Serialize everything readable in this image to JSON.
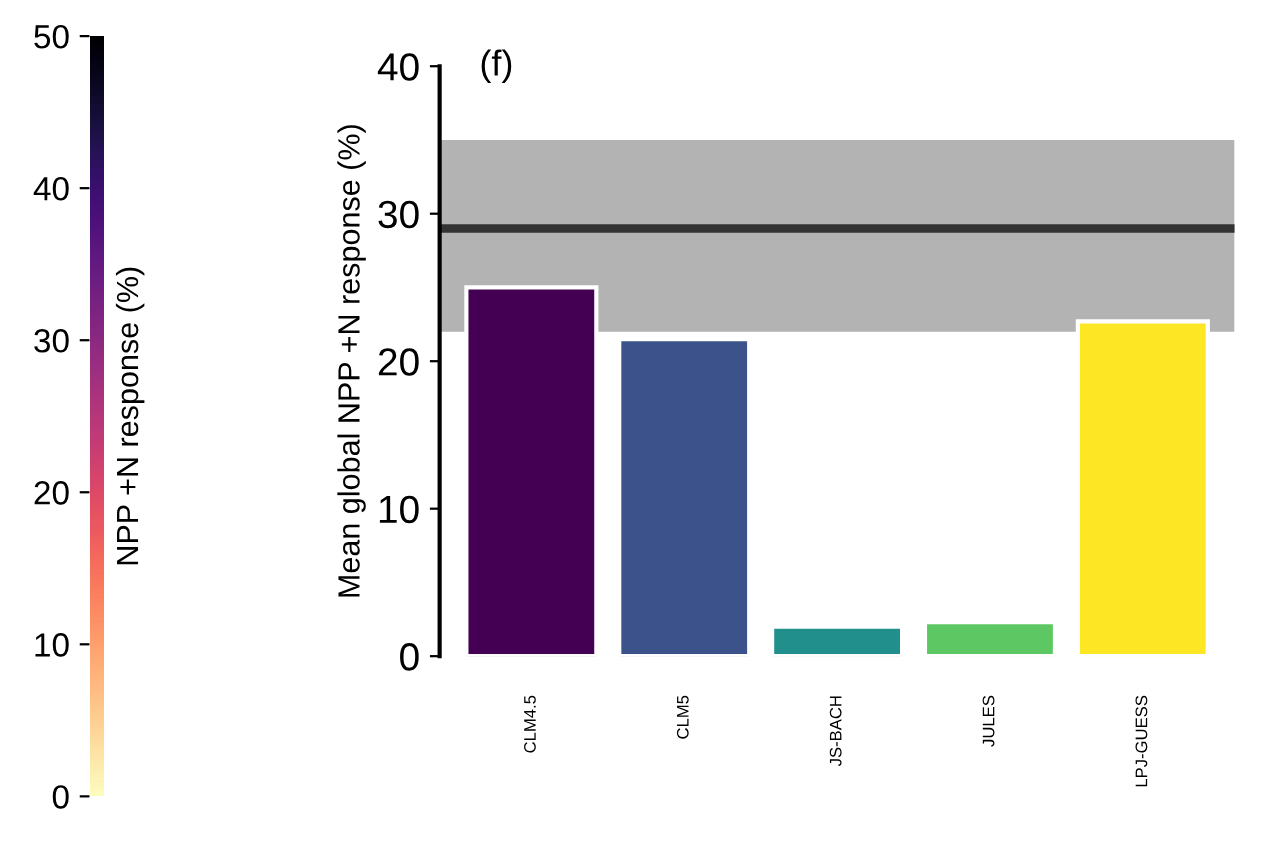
{
  "chart_data": {
    "type": "bar",
    "title": "(f)",
    "ylabel": "Mean global NPP +N response (%)",
    "categories": [
      "CLM4.5",
      "CLM5",
      "JS-BACH",
      "JULES",
      "LPJ-GUESS"
    ],
    "values": [
      25,
      21.5,
      2,
      2.3,
      22.7
    ],
    "colors": [
      "#440154",
      "#3b528b",
      "#21908c",
      "#5dc863",
      "#fde725"
    ],
    "ylim": [
      0,
      40
    ],
    "yticks": [
      0,
      10,
      20,
      30,
      40
    ],
    "ref_lines": [
      {
        "axis": "y",
        "value": 29,
        "label": null,
        "color": "#333333"
      }
    ],
    "bands": [
      {
        "axis": "y",
        "from": 22,
        "to": 35,
        "label": null,
        "color": "#b3b3b3"
      }
    ],
    "clabel": "NPP +N response (%)",
    "clim": [
      0,
      50
    ],
    "cticks": [
      0,
      10,
      20,
      30,
      40,
      50
    ],
    "grid": false,
    "legend": false
  }
}
